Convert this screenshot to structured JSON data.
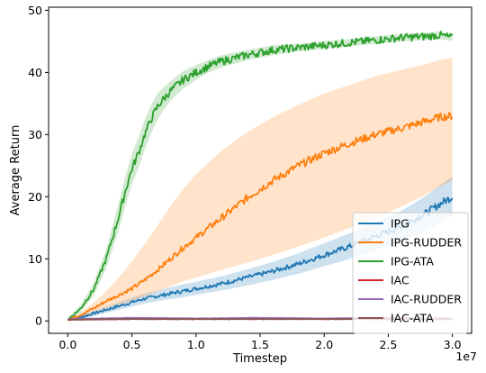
{
  "chart_data": {
    "type": "line",
    "xlabel": "Timestep",
    "ylabel": "Average Return",
    "x_multiplier_label": "1e7",
    "xlim": [
      -0.15,
      3.15
    ],
    "ylim": [
      -2,
      50.5
    ],
    "xticks": [
      0.0,
      0.5,
      1.0,
      1.5,
      2.0,
      2.5,
      3.0
    ],
    "xtick_labels": [
      "0.0",
      "0.5",
      "1.0",
      "1.5",
      "2.0",
      "2.5",
      "3.0"
    ],
    "yticks": [
      0,
      10,
      20,
      30,
      40,
      50
    ],
    "ytick_labels": [
      "0",
      "10",
      "20",
      "30",
      "40",
      "50"
    ],
    "legend_position": "bottom-right",
    "series": [
      {
        "name": "IPG",
        "color": "#1f77b4",
        "x": [
          0.0,
          0.1,
          0.2,
          0.3,
          0.4,
          0.5,
          0.6,
          0.7,
          0.8,
          0.9,
          1.0,
          1.2,
          1.4,
          1.6,
          1.8,
          2.0,
          2.2,
          2.4,
          2.6,
          2.8,
          2.9,
          3.0
        ],
        "y": [
          0.2,
          0.6,
          1.2,
          1.8,
          2.4,
          3.0,
          3.6,
          4.0,
          4.4,
          4.8,
          5.2,
          6.0,
          7.0,
          8.0,
          9.2,
          10.6,
          12.0,
          13.6,
          15.2,
          17.4,
          18.8,
          20.0
        ],
        "band_low": [
          0.0,
          0.3,
          0.8,
          1.3,
          1.8,
          2.3,
          2.8,
          3.2,
          3.5,
          3.8,
          4.2,
          4.9,
          5.7,
          6.6,
          7.6,
          8.8,
          10.0,
          11.4,
          12.8,
          14.6,
          15.8,
          16.8
        ],
        "band_high": [
          0.4,
          0.9,
          1.6,
          2.3,
          3.0,
          3.7,
          4.4,
          4.9,
          5.4,
          5.9,
          6.3,
          7.2,
          8.3,
          9.5,
          10.9,
          12.5,
          14.1,
          15.9,
          17.7,
          20.2,
          21.8,
          23.2
        ]
      },
      {
        "name": "IPG-RUDDER",
        "color": "#ff7f0e",
        "x": [
          0.0,
          0.1,
          0.2,
          0.3,
          0.4,
          0.5,
          0.6,
          0.7,
          0.8,
          0.9,
          1.0,
          1.2,
          1.4,
          1.6,
          1.8,
          2.0,
          2.2,
          2.4,
          2.6,
          2.8,
          2.9,
          3.0
        ],
        "y": [
          0.2,
          1.0,
          2.0,
          3.2,
          4.2,
          5.2,
          6.6,
          8.2,
          10.0,
          11.8,
          13.4,
          16.6,
          19.8,
          22.6,
          25.0,
          27.0,
          28.6,
          30.0,
          31.0,
          32.2,
          32.8,
          33.0
        ],
        "band_low": [
          0.0,
          0.6,
          1.2,
          2.0,
          2.6,
          3.2,
          4.0,
          4.8,
          5.6,
          6.4,
          7.0,
          8.2,
          9.4,
          10.6,
          12.0,
          13.4,
          15.0,
          16.6,
          18.4,
          20.4,
          21.6,
          22.6
        ],
        "band_high": [
          0.4,
          1.4,
          2.9,
          4.8,
          7.0,
          9.6,
          12.4,
          15.4,
          18.4,
          21.2,
          23.6,
          27.4,
          30.4,
          32.8,
          34.8,
          36.6,
          38.0,
          39.4,
          40.4,
          41.4,
          42.0,
          42.4
        ]
      },
      {
        "name": "IPG-ATA",
        "color": "#2ca02c",
        "x": [
          0.0,
          0.1,
          0.2,
          0.3,
          0.35,
          0.4,
          0.45,
          0.5,
          0.55,
          0.6,
          0.65,
          0.7,
          0.75,
          0.8,
          0.9,
          1.0,
          1.1,
          1.2,
          1.4,
          1.6,
          1.8,
          2.0,
          2.2,
          2.4,
          2.6,
          2.8,
          2.9,
          3.0
        ],
        "y": [
          0.2,
          2.0,
          5.0,
          10.0,
          13.5,
          17.0,
          21.0,
          24.5,
          27.0,
          30.0,
          32.5,
          34.5,
          35.8,
          37.0,
          38.8,
          40.0,
          41.0,
          41.8,
          42.8,
          43.6,
          44.0,
          44.4,
          44.8,
          45.2,
          45.6,
          45.8,
          46.0,
          45.6
        ],
        "band_low": [
          0.0,
          1.4,
          4.0,
          8.4,
          11.6,
          14.8,
          18.6,
          22.0,
          24.6,
          27.6,
          30.2,
          32.4,
          34.0,
          35.4,
          37.4,
          38.8,
          40.0,
          40.8,
          42.0,
          42.8,
          43.4,
          43.8,
          44.2,
          44.6,
          45.0,
          45.2,
          45.4,
          45.0
        ],
        "band_high": [
          0.4,
          2.6,
          6.0,
          11.6,
          15.4,
          19.2,
          23.4,
          27.0,
          29.4,
          32.4,
          34.8,
          36.6,
          37.6,
          38.6,
          40.2,
          41.2,
          42.0,
          42.8,
          43.6,
          44.4,
          44.6,
          45.0,
          45.4,
          45.8,
          46.2,
          46.4,
          46.6,
          46.2
        ]
      },
      {
        "name": "IAC",
        "color": "#d62728",
        "x": [
          0.0,
          0.5,
          1.0,
          1.5,
          2.0,
          2.5,
          3.0
        ],
        "y": [
          0.2,
          0.3,
          0.3,
          0.3,
          0.3,
          0.3,
          0.3
        ]
      },
      {
        "name": "IAC-RUDDER",
        "color": "#9467bd",
        "x": [
          0.0,
          0.5,
          1.0,
          1.5,
          2.0,
          2.5,
          3.0
        ],
        "y": [
          0.3,
          0.5,
          0.4,
          0.5,
          0.4,
          0.5,
          0.4
        ]
      },
      {
        "name": "IAC-ATA",
        "color": "#8c564b",
        "x": [
          0.0,
          0.5,
          1.0,
          1.5,
          2.0,
          2.5,
          3.0
        ],
        "y": [
          0.2,
          0.3,
          0.3,
          0.3,
          0.3,
          0.3,
          0.3
        ]
      }
    ]
  }
}
